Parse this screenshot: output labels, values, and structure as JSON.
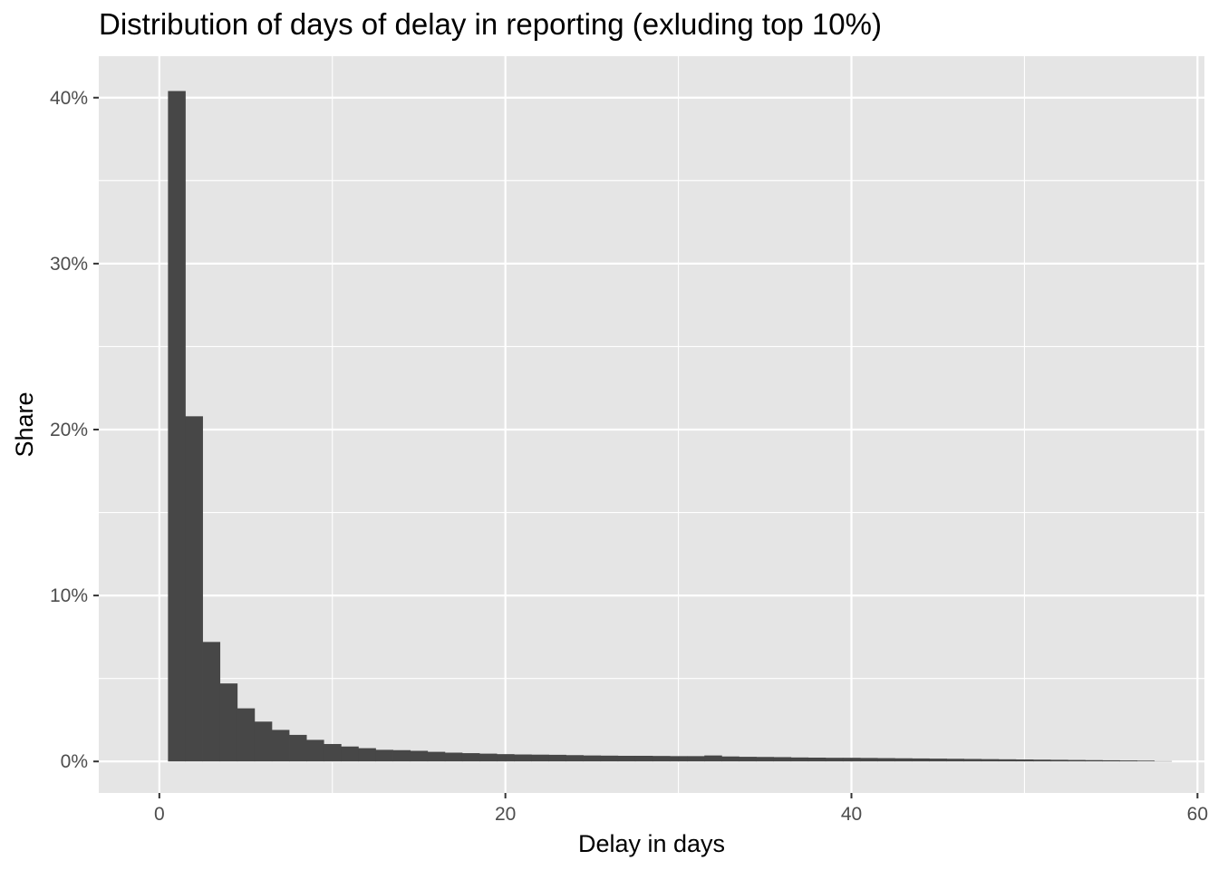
{
  "chart_data": {
    "type": "bar",
    "title": "Distribution of days of delay in reporting (exluding top 10%)",
    "xlabel": "Delay in days",
    "ylabel": "Share",
    "xlim": [
      -3.5,
      60.4
    ],
    "ylim": [
      -1.9,
      42.5
    ],
    "x_ticks": [
      0,
      20,
      40,
      60
    ],
    "x_minor_ticks": [
      10,
      30,
      50
    ],
    "y_ticks": [
      0,
      10,
      20,
      30,
      40
    ],
    "y_tick_labels": [
      "0%",
      "10%",
      "20%",
      "30%",
      "40%"
    ],
    "y_minor_ticks": [
      5,
      15,
      25,
      35
    ],
    "bin_width": 1,
    "bin_starts": [
      -1,
      0,
      1,
      2,
      3,
      4,
      5,
      6,
      7,
      8,
      9,
      10,
      11,
      12,
      13,
      14,
      15,
      16,
      17,
      18,
      19,
      20,
      21,
      22,
      23,
      24,
      25,
      26,
      27,
      28,
      29,
      30,
      31,
      32,
      33,
      34,
      35,
      36,
      37,
      38,
      39,
      40,
      41,
      42,
      43,
      44,
      45,
      46,
      47,
      48,
      49,
      50,
      51,
      52,
      53,
      54,
      55,
      56,
      57
    ],
    "values": [
      0,
      40.4,
      20.8,
      7.2,
      4.7,
      3.2,
      2.4,
      1.9,
      1.6,
      1.3,
      1.05,
      0.9,
      0.8,
      0.7,
      0.68,
      0.64,
      0.58,
      0.53,
      0.5,
      0.47,
      0.44,
      0.42,
      0.41,
      0.4,
      0.38,
      0.36,
      0.35,
      0.34,
      0.34,
      0.33,
      0.32,
      0.32,
      0.36,
      0.3,
      0.28,
      0.27,
      0.26,
      0.24,
      0.23,
      0.22,
      0.22,
      0.21,
      0.2,
      0.19,
      0.18,
      0.17,
      0.16,
      0.15,
      0.14,
      0.13,
      0.12,
      0.11,
      0.1,
      0.09,
      0.08,
      0.07,
      0.06,
      0.05,
      0.02
    ],
    "grid": true,
    "legend": "none",
    "colors": {
      "panel": "#e5e5e5",
      "grid": "#ffffff",
      "bar": "#474747",
      "tick": "#333333",
      "tick_label": "#4d4d4d"
    }
  }
}
